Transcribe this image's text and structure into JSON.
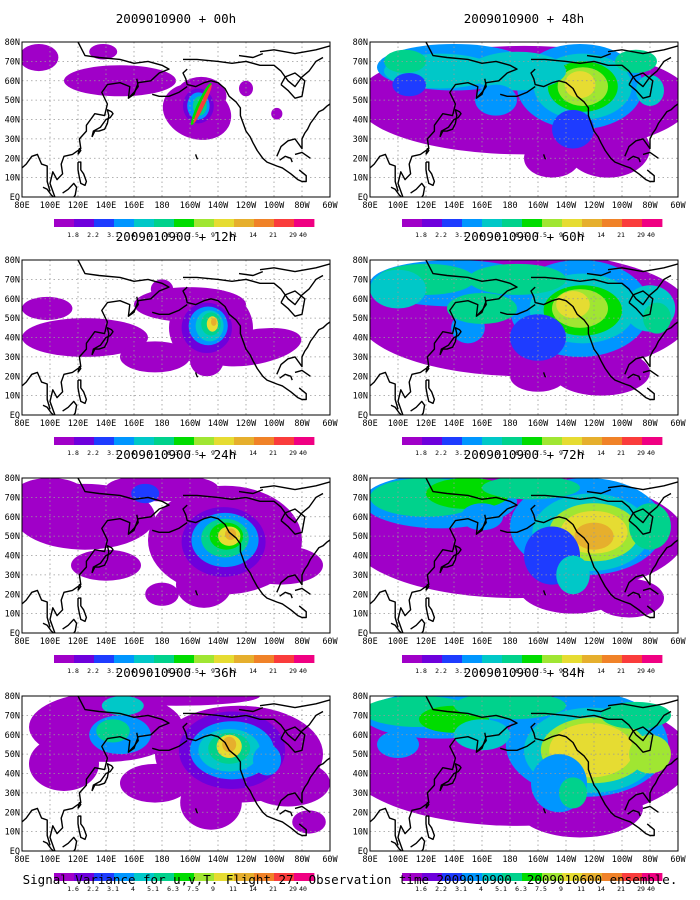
{
  "figure": {
    "caption": "Signal Variance for u,v,T. Flight 27. Observation time 2009010900. 2009010600 ensemble."
  },
  "lon_labels": [
    "80E",
    "100E",
    "120E",
    "140E",
    "160E",
    "180",
    "160W",
    "140W",
    "120W",
    "100W",
    "80W",
    "60W"
  ],
  "lat_labels": [
    "EQ",
    "10N",
    "20N",
    "30N",
    "40N",
    "50N",
    "60N",
    "70N",
    "80N"
  ],
  "colorbar": {
    "labels": [
      "1.8",
      "2.2",
      "3.1",
      "4",
      "5.1",
      "6.3",
      "7.5",
      "9",
      "11",
      "14",
      "21",
      "29",
      "40"
    ],
    "labels_last_row": [
      "1.6",
      "2.2",
      "3.1",
      "4",
      "5.1",
      "6.3",
      "7.5",
      "9",
      "11",
      "14",
      "21",
      "29",
      "40"
    ],
    "colors": [
      "#a000c8",
      "#6e00dc",
      "#1e3cff",
      "#0096ff",
      "#00c8c8",
      "#00d28c",
      "#00dc00",
      "#a0e632",
      "#e6dc32",
      "#e6af2d",
      "#f08228",
      "#fa3c3c",
      "#f00082"
    ]
  },
  "panels": [
    {
      "title": "2009010900 + 00h",
      "id": "p00"
    },
    {
      "title": "2009010900 + 48h",
      "id": "p48"
    },
    {
      "title": "2009010900 + 12h",
      "id": "p12"
    },
    {
      "title": "2009010900 + 60h",
      "id": "p60"
    },
    {
      "title": "2009010900 + 24h",
      "id": "p24"
    },
    {
      "title": "2009010900 + 72h",
      "id": "p72"
    },
    {
      "title": "2009010900 + 36h",
      "id": "p36"
    },
    {
      "title": "2009010900 + 84h",
      "id": "p84"
    }
  ]
}
